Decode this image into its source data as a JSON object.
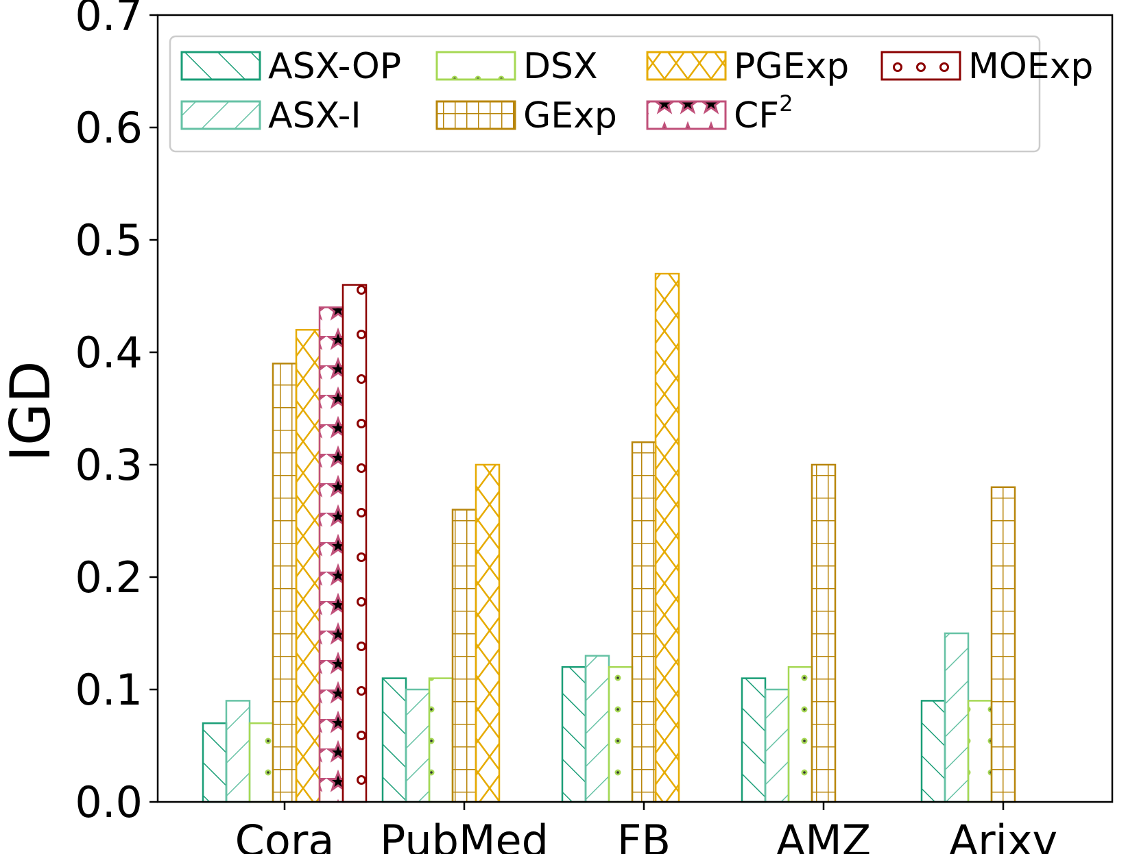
{
  "chart_data": {
    "type": "bar",
    "ylabel": "IGD",
    "xlabel": "",
    "ylim": [
      0,
      0.7
    ],
    "yticks": [
      "0.0",
      "0.1",
      "0.2",
      "0.3",
      "0.4",
      "0.5",
      "0.6",
      "0.7"
    ],
    "categories": [
      "Cora",
      "PubMed",
      "FB",
      "AMZ",
      "Arixv"
    ],
    "legend_position": "top",
    "series": [
      {
        "name": "ASX-OP",
        "color": "#1a9e77",
        "pattern": "diag-forward",
        "values": [
          0.07,
          0.11,
          0.12,
          0.11,
          0.09
        ]
      },
      {
        "name": "ASX-I",
        "color": "#66c2a5",
        "pattern": "diag-back",
        "values": [
          0.09,
          0.1,
          0.13,
          0.1,
          0.15
        ]
      },
      {
        "name": "DSX",
        "color": "#a6d854",
        "pattern": "dots",
        "values": [
          0.07,
          0.11,
          0.12,
          0.12,
          0.09
        ]
      },
      {
        "name": "GExp",
        "color": "#b8860b",
        "pattern": "grid",
        "values": [
          0.39,
          0.26,
          0.32,
          0.3,
          0.28
        ]
      },
      {
        "name": "PGExp",
        "color": "#e6ab02",
        "pattern": "cross",
        "values": [
          0.42,
          0.3,
          0.47,
          0.0,
          0.0
        ]
      },
      {
        "name": "CF",
        "sup": "2",
        "color": "#c0507a",
        "pattern": "stars",
        "values": [
          0.44,
          0.0,
          0.0,
          0.0,
          0.0
        ]
      },
      {
        "name": "MOExp",
        "color": "#8b0000",
        "pattern": "circles",
        "values": [
          0.46,
          0.0,
          0.0,
          0.0,
          0.0
        ]
      }
    ]
  }
}
